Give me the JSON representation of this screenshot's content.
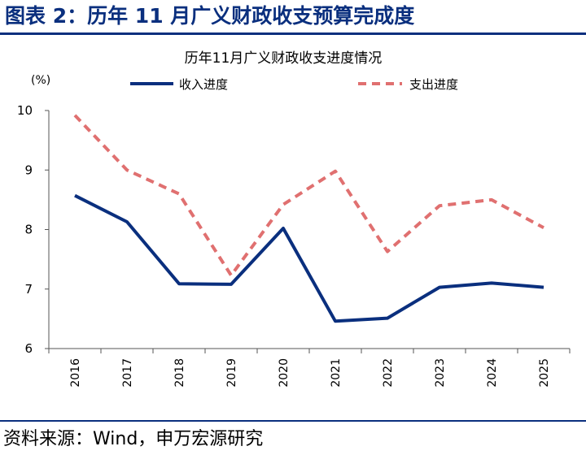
{
  "figure": {
    "header": "图表 2：历年 11 月广义财政收支预算完成度",
    "source": "资料来源：Wind，申万宏源研究"
  },
  "chart_data": {
    "type": "line",
    "title": "历年11月广义财政收支进度情况",
    "ylabel": "(%)",
    "xlabel": "",
    "categories": [
      "2016",
      "2017",
      "2018",
      "2019",
      "2020",
      "2021",
      "2022",
      "2023",
      "2024",
      "2025"
    ],
    "ylim": [
      6,
      10
    ],
    "yticks": [
      "6",
      "7",
      "8",
      "9",
      "10"
    ],
    "legend_position": "top",
    "series": [
      {
        "name": "收入进度",
        "color": "#0a2f7e",
        "style": "solid",
        "values": [
          8.57,
          8.13,
          7.09,
          7.08,
          8.02,
          6.46,
          6.51,
          7.03,
          7.1,
          7.03
        ]
      },
      {
        "name": "支出进度",
        "color": "#e07070",
        "style": "dashed",
        "values": [
          9.92,
          9.0,
          8.6,
          7.23,
          8.42,
          8.98,
          7.63,
          8.4,
          8.5,
          8.03
        ]
      }
    ]
  }
}
